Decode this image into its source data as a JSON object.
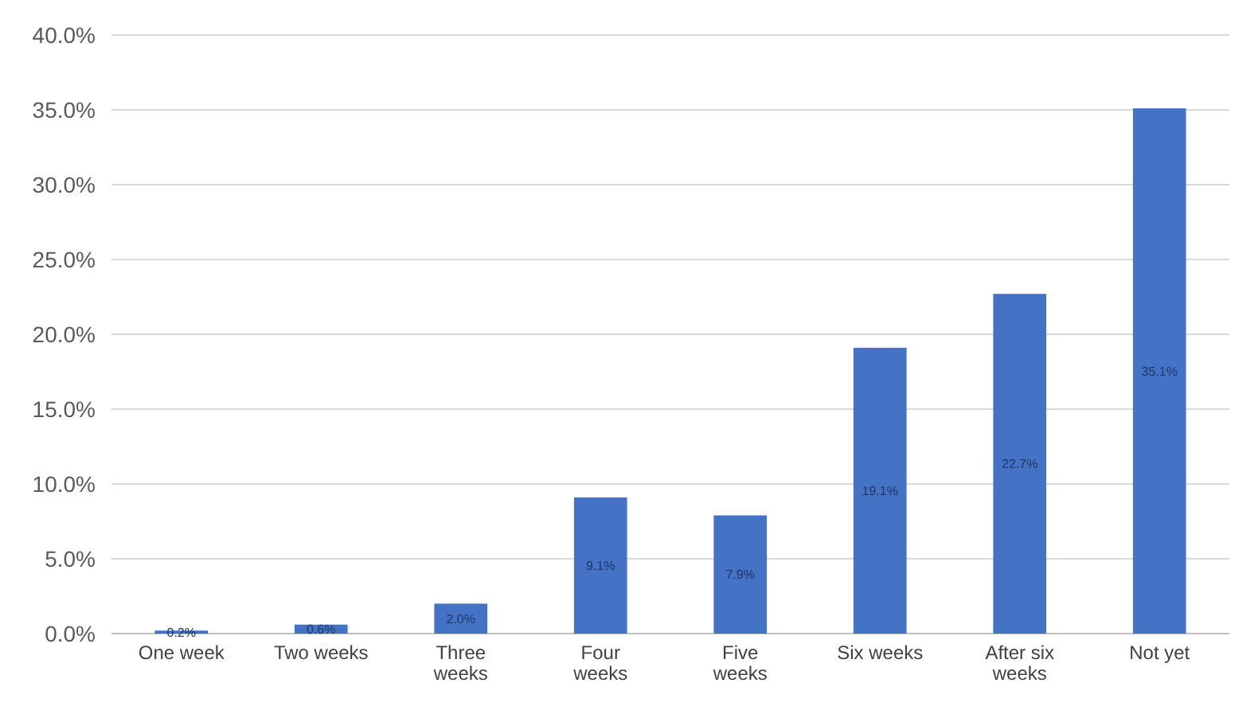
{
  "chart_data": {
    "type": "bar",
    "categories": [
      "One week",
      "Two weeks",
      "Three weeks",
      "Four weeks",
      "Five weeks",
      "Six weeks",
      "After six weeks",
      "Not yet"
    ],
    "values": [
      0.2,
      0.6,
      2.0,
      9.1,
      7.9,
      19.1,
      22.7,
      35.1
    ],
    "value_labels": [
      "0.2%",
      "0.6%",
      "2.0%",
      "9.1%",
      "7.9%",
      "19.1%",
      "22.7%",
      "35.1%"
    ],
    "color": "#4472c4",
    "ylim": [
      0,
      40
    ],
    "yticks": [
      {
        "value": 0,
        "label": "0.0%"
      },
      {
        "value": 5,
        "label": "5.0%"
      },
      {
        "value": 10,
        "label": "10.0%"
      },
      {
        "value": 15,
        "label": "15.0%"
      },
      {
        "value": 20,
        "label": "20.0%"
      },
      {
        "value": 25,
        "label": "25.0%"
      },
      {
        "value": 30,
        "label": "30.0%"
      },
      {
        "value": 35,
        "label": "35.0%"
      },
      {
        "value": 40,
        "label": "40.0%"
      }
    ],
    "grid": "y"
  }
}
